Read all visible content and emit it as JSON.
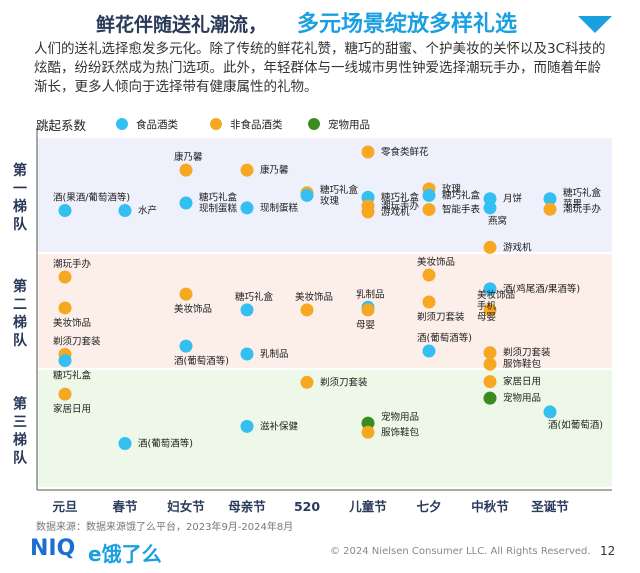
{
  "header": {
    "title_a": "鲜花伴随送礼潮流，",
    "title_b": "多元场景绽放多样礼选",
    "intro": "人们的送礼选择愈发多元化。除了传统的鲜花礼赞，糖巧的甜蜜、个护美妆的关怀以及3C科技的炫酷，纷纷跃然成为热门选项。此外，年轻群体与一线城市男性钟爱选择潮玩手办，而随着年龄渐长，更多人倾向于选择带有健康属性的礼物。"
  },
  "chart_data": {
    "type": "scatter",
    "ylabel": "跳起系数",
    "categories": [
      "元旦",
      "春节",
      "妇女节",
      "母亲节",
      "520",
      "儿童节",
      "七夕",
      "中秋节",
      "圣诞节"
    ],
    "tiers": [
      {
        "name": "第一梯队",
        "color": "#eef0fc"
      },
      {
        "name": "第二梯队",
        "color": "#fcefe9"
      },
      {
        "name": "第三梯队",
        "color": "#eef8e8"
      }
    ],
    "legend": [
      {
        "name": "食品酒类",
        "color": "#33bff0"
      },
      {
        "name": "非食品酒类",
        "color": "#f7a823"
      },
      {
        "name": "宠物用品",
        "color": "#3a8c22"
      }
    ],
    "points": [
      {
        "cat": 0,
        "y": 0.822,
        "group": "食品酒类",
        "label": "酒(果酒/葡萄酒等)",
        "lpos": "above"
      },
      {
        "cat": 1,
        "y": 0.822,
        "group": "食品酒类",
        "label": "水产",
        "lpos": "right"
      },
      {
        "cat": 2,
        "y": 0.945,
        "group": "非食品酒类",
        "label": "康乃馨",
        "lpos": "above"
      },
      {
        "cat": 2,
        "y": 0.845,
        "group": "食品酒类",
        "label": "糖巧礼盒\n现制蛋糕",
        "lpos": "right"
      },
      {
        "cat": 3,
        "y": 0.945,
        "group": "非食品酒类",
        "label": "康乃馨",
        "lpos": "right"
      },
      {
        "cat": 3,
        "y": 0.83,
        "group": "食品酒类",
        "label": "现制蛋糕",
        "lpos": "right"
      },
      {
        "cat": 4,
        "y": 0.876,
        "group": "非食品酒类",
        "label": "",
        "lpos": "none"
      },
      {
        "cat": 4,
        "y": 0.868,
        "group": "食品酒类",
        "label": "糖巧礼盒\n玫瑰",
        "lpos": "right"
      },
      {
        "cat": 5,
        "y": 1.0,
        "group": "非食品酒类",
        "label": "零食类鲜花",
        "lpos": "right"
      },
      {
        "cat": 5,
        "y": 0.862,
        "group": "食品酒类",
        "label": "糖巧礼盒",
        "lpos": "right"
      },
      {
        "cat": 5,
        "y": 0.836,
        "group": "非食品酒类",
        "label": "潮玩手办",
        "lpos": "right"
      },
      {
        "cat": 5,
        "y": 0.818,
        "group": "非食品酒类",
        "label": "游戏机",
        "lpos": "right"
      },
      {
        "cat": 6,
        "y": 0.888,
        "group": "非食品酒类",
        "label": "玫瑰",
        "lpos": "right"
      },
      {
        "cat": 6,
        "y": 0.868,
        "group": "食品酒类",
        "label": "糖巧礼盒",
        "lpos": "right"
      },
      {
        "cat": 6,
        "y": 0.825,
        "group": "非食品酒类",
        "label": "智能手表",
        "lpos": "right"
      },
      {
        "cat": 7,
        "y": 0.858,
        "group": "食品酒类",
        "label": "月饼",
        "lpos": "right"
      },
      {
        "cat": 7,
        "y": 0.83,
        "group": "食品酒类",
        "label": "燕窝",
        "lpos": "belowright"
      },
      {
        "cat": 8,
        "y": 0.858,
        "group": "食品酒类",
        "label": "糖巧礼盒\n苹果",
        "lpos": "right"
      },
      {
        "cat": 8,
        "y": 0.826,
        "group": "非食品酒类",
        "label": "潮玩手办",
        "lpos": "right"
      },
      {
        "cat": 0,
        "y": 0.62,
        "group": "非食品酒类",
        "label": "潮玩手办",
        "lpos": "above"
      },
      {
        "cat": 0,
        "y": 0.526,
        "group": "非食品酒类",
        "label": "美妆饰品",
        "lpos": "below"
      },
      {
        "cat": 2,
        "y": 0.568,
        "group": "非食品酒类",
        "label": "美妆饰品",
        "lpos": "below"
      },
      {
        "cat": 3,
        "y": 0.52,
        "group": "食品酒类",
        "label": "糖巧礼盒",
        "lpos": "above"
      },
      {
        "cat": 4,
        "y": 0.52,
        "group": "非食品酒类",
        "label": "美妆饰品",
        "lpos": "above"
      },
      {
        "cat": 5,
        "y": 0.528,
        "group": "食品酒类",
        "label": "乳制品",
        "lpos": "above"
      },
      {
        "cat": 5,
        "y": 0.52,
        "group": "非食品酒类",
        "label": "母婴",
        "lpos": "below"
      },
      {
        "cat": 6,
        "y": 0.626,
        "group": "非食品酒类",
        "label": "美妆饰品",
        "lpos": "above"
      },
      {
        "cat": 6,
        "y": 0.544,
        "group": "非食品酒类",
        "label": "剃须刀套装",
        "lpos": "below"
      },
      {
        "cat": 7,
        "y": 0.71,
        "group": "非食品酒类",
        "label": "游戏机",
        "lpos": "right"
      },
      {
        "cat": 7,
        "y": 0.584,
        "group": "食品酒类",
        "label": "酒(鸡尾酒/果酒等)",
        "lpos": "right"
      },
      {
        "cat": 7,
        "y": 0.52,
        "group": "非食品酒类",
        "label": "美妆饰品\n手机\n母婴",
        "lpos": "rightstack"
      },
      {
        "cat": 0,
        "y": 0.385,
        "group": "非食品酒类",
        "label": "剃须刀套装",
        "lpos": "above"
      },
      {
        "cat": 0,
        "y": 0.366,
        "group": "食品酒类",
        "label": "糖巧礼盒",
        "lpos": "below"
      },
      {
        "cat": 0,
        "y": 0.264,
        "group": "非食品酒类",
        "label": "家居日用",
        "lpos": "below"
      },
      {
        "cat": 1,
        "y": 0.114,
        "group": "食品酒类",
        "label": "酒(葡萄酒等)",
        "lpos": "right"
      },
      {
        "cat": 2,
        "y": 0.41,
        "group": "食品酒类",
        "label": "酒(葡萄酒等)",
        "lpos": "below"
      },
      {
        "cat": 3,
        "y": 0.386,
        "group": "食品酒类",
        "label": "乳制品",
        "lpos": "right"
      },
      {
        "cat": 3,
        "y": 0.166,
        "group": "食品酒类",
        "label": "滋补保健",
        "lpos": "right"
      },
      {
        "cat": 4,
        "y": 0.3,
        "group": "非食品酒类",
        "label": "剃须刀套装",
        "lpos": "right"
      },
      {
        "cat": 5,
        "y": 0.176,
        "group": "宠物用品",
        "label": "宠物用品",
        "lpos": "rightup"
      },
      {
        "cat": 5,
        "y": 0.148,
        "group": "非食品酒类",
        "label": "服饰鞋包",
        "lpos": "right"
      },
      {
        "cat": 6,
        "y": 0.395,
        "group": "食品酒类",
        "label": "酒(葡萄酒等)",
        "lpos": "above"
      },
      {
        "cat": 7,
        "y": 0.39,
        "group": "非食品酒类",
        "label": "剃须刀套装",
        "lpos": "right"
      },
      {
        "cat": 7,
        "y": 0.355,
        "group": "非食品酒类",
        "label": "服饰鞋包",
        "lpos": "right"
      },
      {
        "cat": 7,
        "y": 0.302,
        "group": "非食品酒类",
        "label": "家居日用",
        "lpos": "right"
      },
      {
        "cat": 7,
        "y": 0.252,
        "group": "宠物用品",
        "label": "宠物用品",
        "lpos": "right"
      },
      {
        "cat": 8,
        "y": 0.21,
        "group": "食品酒类",
        "label": "酒(如葡萄酒)",
        "lpos": "belowright"
      }
    ]
  },
  "footer": {
    "source": "数据来源：数据来源饿了么平台，2023年9月-2024年8月",
    "logo_niq": "NIQ",
    "logo_ele": "e饿了么",
    "copyright": "© 2024 Nielsen Consumer LLC. All Rights Reserved.",
    "page": "12"
  }
}
